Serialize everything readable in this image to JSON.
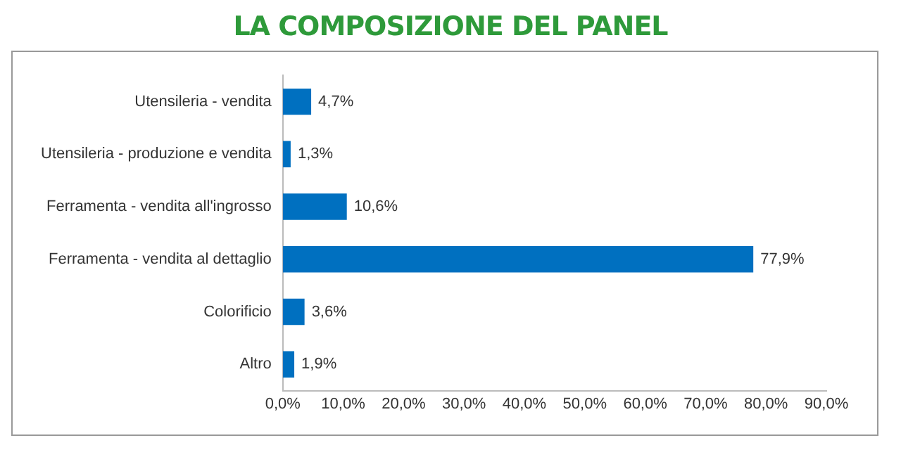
{
  "chart_data": {
    "type": "bar",
    "orientation": "horizontal",
    "title": "LA COMPOSIZIONE DEL PANEL",
    "categories": [
      "Utensileria - vendita",
      "Utensileria - produzione e vendita",
      "Ferramenta - vendita all'ingrosso",
      "Ferramenta - vendita al dettaglio",
      "Colorificio",
      "Altro"
    ],
    "values": [
      4.7,
      1.3,
      10.6,
      77.9,
      3.6,
      1.9
    ],
    "value_labels": [
      "4,7%",
      "1,3%",
      "10,6%",
      "77,9%",
      "3,6%",
      "1,9%"
    ],
    "color": "#0070c0",
    "xlim": [
      0,
      90
    ],
    "xticks": [
      {
        "value": 0,
        "label": "0,0%"
      },
      {
        "value": 10,
        "label": "10,0%"
      },
      {
        "value": 20,
        "label": "20,0%"
      },
      {
        "value": 30,
        "label": "30,0%"
      },
      {
        "value": 40,
        "label": "40,0%"
      },
      {
        "value": 50,
        "label": "50,0%"
      },
      {
        "value": 60,
        "label": "60,0%"
      },
      {
        "value": 70,
        "label": "70,0%"
      },
      {
        "value": 80,
        "label": "80,0%"
      },
      {
        "value": 90,
        "label": "90,0%"
      }
    ],
    "grid": false,
    "legend": false
  }
}
